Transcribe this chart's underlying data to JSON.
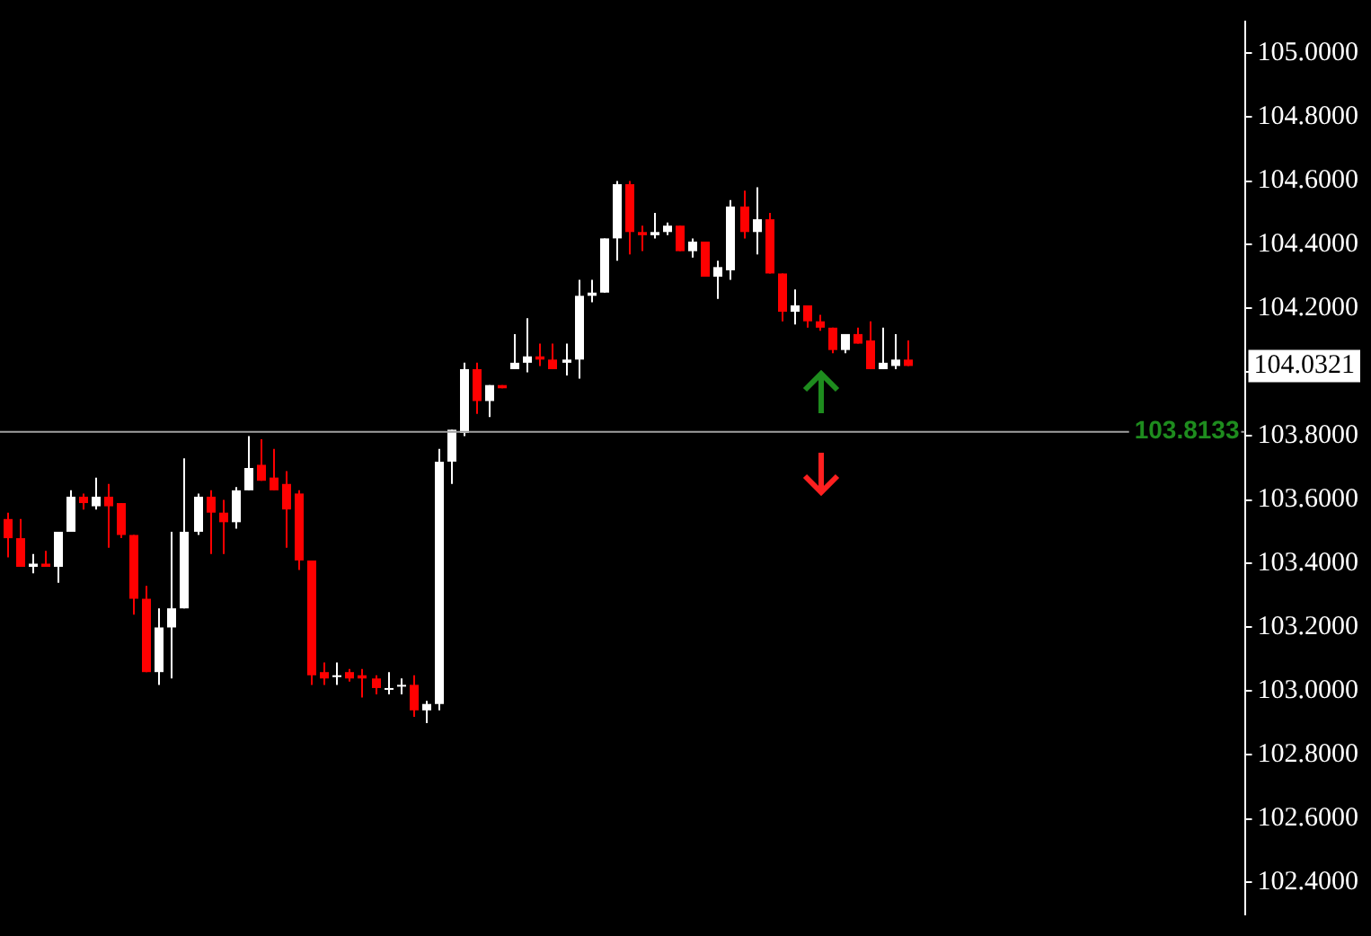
{
  "chart_data": {
    "type": "candlestick",
    "categories": [
      null,
      null,
      null,
      null,
      null,
      null,
      null,
      null,
      null,
      null,
      null,
      null,
      null,
      null,
      null,
      null,
      null,
      null,
      null,
      null,
      null,
      null,
      null,
      null,
      null,
      null,
      null,
      null,
      null,
      null,
      null,
      null,
      null,
      null,
      null,
      null,
      null,
      null,
      null,
      null,
      null,
      null,
      null,
      null,
      null,
      null,
      null,
      null,
      null,
      null,
      null,
      null,
      null,
      null,
      null,
      null,
      null,
      null,
      null,
      null,
      null,
      null,
      null,
      null,
      null,
      null,
      null,
      null,
      null,
      null,
      null,
      null,
      null,
      null,
      null,
      null,
      null,
      null,
      null,
      null,
      null,
      null,
      null,
      null,
      null,
      null,
      null,
      null,
      null,
      null,
      null,
      null,
      null,
      null,
      null,
      null,
      null,
      null
    ],
    "ohlc": [
      [
        103.54,
        103.56,
        103.42,
        103.48
      ],
      [
        103.48,
        103.54,
        103.39,
        103.39
      ],
      [
        103.39,
        103.43,
        103.37,
        103.4
      ],
      [
        103.4,
        103.44,
        103.39,
        103.39
      ],
      [
        103.39,
        103.5,
        103.34,
        103.5
      ],
      [
        103.5,
        103.63,
        103.5,
        103.61
      ],
      [
        103.61,
        103.62,
        103.57,
        103.59
      ],
      [
        103.58,
        103.67,
        103.57,
        103.61
      ],
      [
        103.61,
        103.65,
        103.45,
        103.58
      ],
      [
        103.59,
        103.59,
        103.48,
        103.49
      ],
      [
        103.49,
        103.49,
        103.24,
        103.29
      ],
      [
        103.29,
        103.33,
        103.06,
        103.06
      ],
      [
        103.06,
        103.26,
        103.02,
        103.2
      ],
      [
        103.2,
        103.5,
        103.04,
        103.26
      ],
      [
        103.26,
        103.73,
        103.26,
        103.5
      ],
      [
        103.5,
        103.62,
        103.49,
        103.61
      ],
      [
        103.61,
        103.63,
        103.43,
        103.56
      ],
      [
        103.56,
        103.6,
        103.43,
        103.53
      ],
      [
        103.53,
        103.64,
        103.51,
        103.63
      ],
      [
        103.63,
        103.8,
        103.63,
        103.7
      ],
      [
        103.71,
        103.79,
        103.66,
        103.66
      ],
      [
        103.67,
        103.76,
        103.63,
        103.63
      ],
      [
        103.65,
        103.69,
        103.45,
        103.57
      ],
      [
        103.62,
        103.63,
        103.38,
        103.41
      ],
      [
        103.41,
        103.41,
        103.02,
        103.05
      ],
      [
        103.06,
        103.09,
        103.02,
        103.04
      ],
      [
        103.05,
        103.09,
        103.02,
        103.05
      ],
      [
        103.06,
        103.07,
        103.03,
        103.04
      ],
      [
        103.05,
        103.07,
        102.98,
        103.04
      ],
      [
        103.04,
        103.05,
        102.99,
        103.01
      ],
      [
        103.01,
        103.06,
        102.99,
        103.01
      ],
      [
        103.02,
        103.04,
        102.99,
        103.02
      ],
      [
        103.02,
        103.05,
        102.92,
        102.94
      ],
      [
        102.94,
        102.97,
        102.9,
        102.96
      ],
      [
        102.96,
        103.76,
        102.94,
        103.72
      ],
      [
        103.72,
        103.82,
        103.65,
        103.82
      ],
      [
        103.81,
        104.03,
        103.8,
        104.01
      ],
      [
        104.01,
        104.03,
        103.87,
        103.91
      ],
      [
        103.91,
        103.96,
        103.86,
        103.96
      ],
      [
        103.96,
        103.96,
        103.95,
        103.95
      ],
      [
        104.01,
        104.12,
        104.01,
        104.03
      ],
      [
        104.03,
        104.17,
        104.0,
        104.05
      ],
      [
        104.05,
        104.09,
        104.02,
        104.04
      ],
      [
        104.04,
        104.09,
        104.01,
        104.01
      ],
      [
        104.03,
        104.09,
        103.99,
        104.04
      ],
      [
        104.04,
        104.29,
        103.98,
        104.24
      ],
      [
        104.24,
        104.29,
        104.22,
        104.25
      ],
      [
        104.25,
        104.42,
        104.25,
        104.42
      ],
      [
        104.42,
        104.6,
        104.35,
        104.59
      ],
      [
        104.59,
        104.6,
        104.37,
        104.44
      ],
      [
        104.44,
        104.46,
        104.38,
        104.43
      ],
      [
        104.43,
        104.5,
        104.42,
        104.44
      ],
      [
        104.44,
        104.47,
        104.43,
        104.46
      ],
      [
        104.46,
        104.46,
        104.38,
        104.38
      ],
      [
        104.38,
        104.42,
        104.36,
        104.41
      ],
      [
        104.41,
        104.41,
        104.3,
        104.3
      ],
      [
        104.3,
        104.35,
        104.23,
        104.33
      ],
      [
        104.32,
        104.54,
        104.29,
        104.52
      ],
      [
        104.52,
        104.57,
        104.42,
        104.44
      ],
      [
        104.44,
        104.58,
        104.37,
        104.48
      ],
      [
        104.48,
        104.5,
        104.31,
        104.31
      ],
      [
        104.31,
        104.31,
        104.16,
        104.19
      ],
      [
        104.19,
        104.26,
        104.15,
        104.21
      ],
      [
        104.21,
        104.21,
        104.14,
        104.16
      ],
      [
        104.16,
        104.18,
        104.13,
        104.14
      ],
      [
        104.14,
        104.14,
        104.06,
        104.07
      ],
      [
        104.07,
        104.12,
        104.06,
        104.12
      ],
      [
        104.12,
        104.14,
        104.09,
        104.09
      ],
      [
        104.1,
        104.16,
        104.01,
        104.01
      ],
      [
        104.01,
        104.14,
        104.01,
        104.03
      ],
      [
        104.02,
        104.12,
        104.01,
        104.04
      ],
      [
        104.04,
        104.1,
        104.02,
        104.02
      ],
      null,
      null,
      null,
      null,
      null,
      null,
      null,
      null,
      null,
      null,
      null,
      null,
      null,
      null,
      null,
      null,
      null,
      null,
      null,
      null,
      null,
      null,
      null,
      null,
      null,
      null
    ],
    "ylim": [
      102.3,
      105.1
    ],
    "yticks": [
      {
        "value": 102.4,
        "label": "102.4000"
      },
      {
        "value": 102.6,
        "label": "102.6000"
      },
      {
        "value": 102.8,
        "label": "102.8000"
      },
      {
        "value": 103.0,
        "label": "103.0000"
      },
      {
        "value": 103.2,
        "label": "103.2000"
      },
      {
        "value": 103.4,
        "label": "103.4000"
      },
      {
        "value": 103.6,
        "label": "103.6000"
      },
      {
        "value": 103.8,
        "label": "103.8000"
      },
      {
        "value": 104.0,
        "label": null
      },
      {
        "value": 104.2,
        "label": "104.2000"
      },
      {
        "value": 104.4,
        "label": "104.4000"
      },
      {
        "value": 104.6,
        "label": "104.6000"
      },
      {
        "value": 104.8,
        "label": "104.8000"
      },
      {
        "value": 105.0,
        "label": "105.0000"
      }
    ],
    "ref_lines": [
      {
        "axis": "y",
        "value": 103.8133,
        "label": "103.8133",
        "color": "#a0a0a0"
      }
    ],
    "annotations": [
      "104.0321"
    ],
    "tick_labels": "y"
  }
}
